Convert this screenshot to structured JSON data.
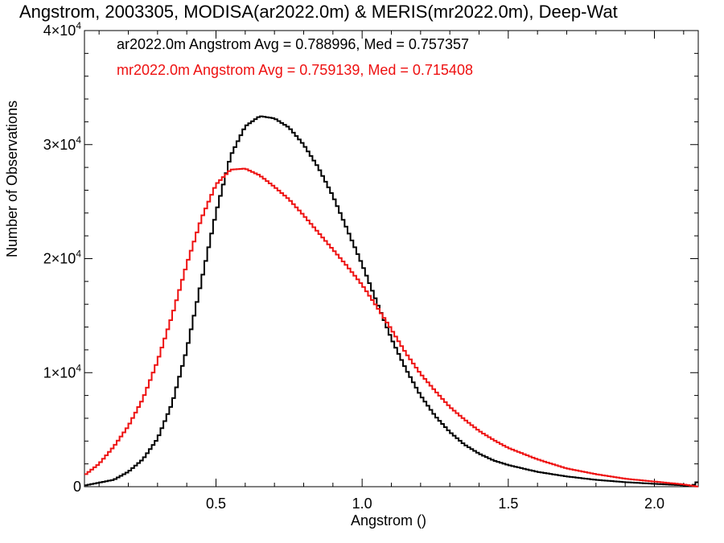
{
  "title": "Angstrom, 2003305, MODISA(ar2022.0m) & MERIS(mr2022.0m), Deep-Wat",
  "colors": {
    "series1": "#000000",
    "series2": "#ee1111"
  },
  "chart_data": {
    "type": "line",
    "xlabel": "Angstrom ()",
    "ylabel": "Number of Observations",
    "xlim": [
      0.05,
      2.15
    ],
    "ylim": [
      0,
      40000
    ],
    "xticks": [
      0.5,
      1.0,
      1.5,
      2.0
    ],
    "xtick_labels": [
      "0.5",
      "1.0",
      "1.5",
      "2.0"
    ],
    "yticks": [
      0,
      10000,
      20000,
      30000,
      40000
    ],
    "ytick_labels": [
      {
        "mant": "0",
        "exp": ""
      },
      {
        "mant": "1×10",
        "exp": "4"
      },
      {
        "mant": "2×10",
        "exp": "4"
      },
      {
        "mant": "3×10",
        "exp": "4"
      },
      {
        "mant": "4×10",
        "exp": "4"
      }
    ],
    "grid": false,
    "legend_placement": "top-left",
    "series": [
      {
        "legend": "ar2022.0m Angstrom Avg = 0.788996, Med = 0.757357",
        "color": "#000000",
        "points": [
          [
            0.05,
            100
          ],
          [
            0.15,
            600
          ],
          [
            0.2,
            1300
          ],
          [
            0.25,
            2400
          ],
          [
            0.3,
            4200
          ],
          [
            0.35,
            7300
          ],
          [
            0.4,
            12000
          ],
          [
            0.45,
            18000
          ],
          [
            0.5,
            24000
          ],
          [
            0.55,
            29000
          ],
          [
            0.6,
            31600
          ],
          [
            0.65,
            32500
          ],
          [
            0.7,
            32300
          ],
          [
            0.75,
            31500
          ],
          [
            0.8,
            30000
          ],
          [
            0.85,
            28000
          ],
          [
            0.9,
            25500
          ],
          [
            0.95,
            22500
          ],
          [
            1.0,
            19500
          ],
          [
            1.05,
            16200
          ],
          [
            1.1,
            13000
          ],
          [
            1.15,
            10300
          ],
          [
            1.2,
            8000
          ],
          [
            1.25,
            6200
          ],
          [
            1.3,
            4800
          ],
          [
            1.35,
            3700
          ],
          [
            1.4,
            2900
          ],
          [
            1.45,
            2300
          ],
          [
            1.5,
            1900
          ],
          [
            1.6,
            1300
          ],
          [
            1.7,
            900
          ],
          [
            1.8,
            600
          ],
          [
            1.9,
            400
          ],
          [
            2.0,
            250
          ],
          [
            2.1,
            120
          ],
          [
            2.13,
            60
          ],
          [
            2.15,
            500
          ]
        ]
      },
      {
        "legend": "mr2022.0m Angstrom Avg = 0.759139, Med = 0.715408",
        "color": "#ee1111",
        "points": [
          [
            0.05,
            1000
          ],
          [
            0.1,
            2000
          ],
          [
            0.15,
            3500
          ],
          [
            0.2,
            5300
          ],
          [
            0.25,
            7700
          ],
          [
            0.3,
            11000
          ],
          [
            0.35,
            15000
          ],
          [
            0.4,
            19500
          ],
          [
            0.45,
            23500
          ],
          [
            0.5,
            26500
          ],
          [
            0.55,
            27800
          ],
          [
            0.6,
            27900
          ],
          [
            0.65,
            27300
          ],
          [
            0.7,
            26300
          ],
          [
            0.75,
            25200
          ],
          [
            0.8,
            23800
          ],
          [
            0.85,
            22300
          ],
          [
            0.9,
            20800
          ],
          [
            0.95,
            19300
          ],
          [
            1.0,
            17700
          ],
          [
            1.05,
            15800
          ],
          [
            1.1,
            13800
          ],
          [
            1.15,
            11700
          ],
          [
            1.2,
            9900
          ],
          [
            1.25,
            8400
          ],
          [
            1.3,
            7000
          ],
          [
            1.35,
            5900
          ],
          [
            1.4,
            4900
          ],
          [
            1.45,
            4100
          ],
          [
            1.5,
            3400
          ],
          [
            1.6,
            2400
          ],
          [
            1.7,
            1600
          ],
          [
            1.8,
            1100
          ],
          [
            1.9,
            700
          ],
          [
            2.0,
            450
          ],
          [
            2.1,
            200
          ],
          [
            2.15,
            0
          ]
        ]
      }
    ]
  }
}
